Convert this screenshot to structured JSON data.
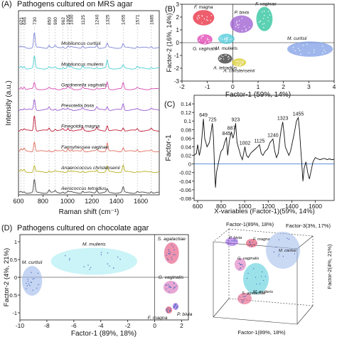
{
  "chart_data": [
    {
      "id": "A",
      "type": "line",
      "panel_label": "(A)",
      "title": "Pathogens cultured on MRS agar",
      "xlabel": "Raman shift (cm⁻¹)",
      "ylabel": "Intensity (a.u.)",
      "xlim": [
        600,
        1750
      ],
      "xticks": [
        600,
        800,
        1000,
        1200,
        1400,
        1600
      ],
      "peak_labels": [
        621,
        646,
        730,
        850,
        900,
        962,
        1005,
        1030,
        1125,
        1240,
        1325,
        1455,
        1571,
        1685
      ],
      "series": [
        {
          "name": "Mobiluncus curtisii",
          "color": "#7f86d8"
        },
        {
          "name": "Mobiluncus mulieris",
          "color": "#4fd0d6"
        },
        {
          "name": "Gardnerella vaginalis",
          "color": "#d64bb4"
        },
        {
          "name": "Prevotella bivia",
          "color": "#9b59d0"
        },
        {
          "name": "Finegoldia magna",
          "color": "#c0203a"
        },
        {
          "name": "Fannyhessea vaginae",
          "color": "#e07060"
        },
        {
          "name": "Anaerococcus christensenii",
          "color": "#b8b022"
        },
        {
          "name": "Aerococcus tetradius",
          "color": "#444444"
        }
      ]
    },
    {
      "id": "B",
      "type": "scatter",
      "panel_label": "(B)",
      "xlabel": "Factor-1 (59%, 14%)",
      "ylabel": "Factor-2 (16%, 14%)",
      "xlim": [
        -2,
        4
      ],
      "ylim": [
        -3,
        3
      ],
      "xticks": [
        -2,
        -1,
        0,
        1,
        2,
        3,
        4
      ],
      "yticks": [
        -3,
        -2,
        -1,
        0,
        1,
        2,
        3
      ],
      "groups": [
        {
          "name": "F. magna",
          "color": "#e8283c",
          "cx": -1.15,
          "cy": 1.95,
          "rx": 0.42,
          "ry": 0.6
        },
        {
          "name": "P. bivia",
          "color": "#9b59d0",
          "cx": 0.35,
          "cy": 1.45,
          "rx": 0.45,
          "ry": 0.68
        },
        {
          "name": "F. vaginae",
          "color": "#27c29a",
          "cx": 1.25,
          "cy": 1.85,
          "rx": 0.32,
          "ry": 0.95
        },
        {
          "name": "G. vaginalis",
          "color": "#e23fb2",
          "cx": -1.1,
          "cy": 0.25,
          "rx": 0.3,
          "ry": 0.4
        },
        {
          "name": "M. mulieris",
          "color": "#48c9d8",
          "cx": -0.25,
          "cy": 0.3,
          "rx": 0.32,
          "ry": 0.4
        },
        {
          "name": "M. curtisii",
          "color": "#7f9fe6",
          "cx": 3.05,
          "cy": -0.5,
          "rx": 0.9,
          "ry": 0.6
        },
        {
          "name": "A. tetradius",
          "color": "#333333",
          "cx": -0.3,
          "cy": -1.25,
          "rx": 0.28,
          "ry": 0.38
        },
        {
          "name": "A. christensenii",
          "color": "#d8cc2a",
          "cx": 0.25,
          "cy": -1.55,
          "rx": 0.28,
          "ry": 0.32
        }
      ]
    },
    {
      "id": "C",
      "type": "line",
      "panel_label": "(C)",
      "xlabel": "X-variables (Factor-1)(59%, 14%)",
      "ylabel": "Factor-1",
      "xlim": [
        570,
        1760
      ],
      "ylim": [
        -0.085,
        0.16
      ],
      "xticks": [
        600,
        800,
        1000,
        1200,
        1400,
        1600
      ],
      "yticks": [
        -0.08,
        -0.06,
        -0.04,
        -0.02,
        0,
        0.02,
        0.04,
        0.06,
        0.08,
        0.1,
        0.12,
        0.14
      ],
      "peak_labels": [
        {
          "x": 649,
          "label": "649"
        },
        {
          "x": 725,
          "label": "725"
        },
        {
          "x": 845,
          "label": "845"
        },
        {
          "x": 887,
          "label": "887"
        },
        {
          "x": 923,
          "label": "923"
        },
        {
          "x": 1002,
          "label": "1002"
        },
        {
          "x": 1125,
          "label": "1125"
        },
        {
          "x": 1240,
          "label": "1240"
        },
        {
          "x": 1323,
          "label": "1323"
        },
        {
          "x": 1455,
          "label": "1455"
        }
      ],
      "points": [
        [
          570,
          0.02
        ],
        [
          590,
          0.025
        ],
        [
          600,
          0.045
        ],
        [
          615,
          0.02
        ],
        [
          630,
          0.04
        ],
        [
          649,
          0.105
        ],
        [
          660,
          0.06
        ],
        [
          680,
          0.04
        ],
        [
          700,
          0.05
        ],
        [
          712,
          0.07
        ],
        [
          725,
          0.095
        ],
        [
          735,
          0.06
        ],
        [
          745,
          -0.02
        ],
        [
          752,
          -0.055
        ],
        [
          760,
          -0.02
        ],
        [
          775,
          0.0
        ],
        [
          790,
          0.02
        ],
        [
          800,
          0.03
        ],
        [
          815,
          0.035
        ],
        [
          830,
          0.05
        ],
        [
          845,
          0.062
        ],
        [
          855,
          0.02
        ],
        [
          870,
          0.055
        ],
        [
          887,
          0.075
        ],
        [
          900,
          0.06
        ],
        [
          910,
          0.07
        ],
        [
          923,
          0.095
        ],
        [
          935,
          0.05
        ],
        [
          950,
          0.035
        ],
        [
          965,
          0.02
        ],
        [
          980,
          0.01
        ],
        [
          1002,
          0.04
        ],
        [
          1015,
          0.02
        ],
        [
          1030,
          0.015
        ],
        [
          1050,
          0.025
        ],
        [
          1070,
          0.03
        ],
        [
          1090,
          0.035
        ],
        [
          1110,
          0.04
        ],
        [
          1125,
          0.045
        ],
        [
          1140,
          0.025
        ],
        [
          1155,
          0.02
        ],
        [
          1175,
          0.03
        ],
        [
          1195,
          0.035
        ],
        [
          1215,
          0.05
        ],
        [
          1240,
          0.058
        ],
        [
          1255,
          0.03
        ],
        [
          1270,
          0.015
        ],
        [
          1285,
          0.025
        ],
        [
          1300,
          0.06
        ],
        [
          1310,
          0.08
        ],
        [
          1323,
          0.098
        ],
        [
          1335,
          0.07
        ],
        [
          1345,
          0.04
        ],
        [
          1360,
          0.03
        ],
        [
          1375,
          0.02
        ],
        [
          1390,
          0.03
        ],
        [
          1405,
          0.05
        ],
        [
          1420,
          0.07
        ],
        [
          1440,
          0.1
        ],
        [
          1455,
          0.108
        ],
        [
          1465,
          0.08
        ],
        [
          1475,
          0.04
        ],
        [
          1485,
          0.0
        ],
        [
          1495,
          -0.04
        ],
        [
          1505,
          -0.01
        ],
        [
          1520,
          0.005
        ],
        [
          1535,
          -0.02
        ],
        [
          1550,
          -0.035
        ],
        [
          1565,
          -0.015
        ],
        [
          1580,
          0.005
        ],
        [
          1600,
          0.015
        ],
        [
          1620,
          0.012
        ],
        [
          1640,
          0.01
        ],
        [
          1660,
          0.012
        ],
        [
          1680,
          0.013
        ],
        [
          1700,
          0.01
        ],
        [
          1720,
          0.012
        ],
        [
          1740,
          0.01
        ],
        [
          1760,
          0.011
        ]
      ]
    },
    {
      "id": "D",
      "type": "scatter",
      "panel_label": "(D)",
      "title": "Pathogens cultured on chocolate agar",
      "xlabel": "Factor-1 (89%, 18%)",
      "ylabel": "Factor-2 (4%, 21%)",
      "xlim": [
        -10,
        2.5
      ],
      "ylim": [
        -1.2,
        1.2
      ],
      "xticks": [
        -10,
        -8,
        -6,
        -4,
        -2,
        0,
        2
      ],
      "yticks": [
        -1,
        -0.5,
        0,
        0.5,
        1
      ],
      "groups": [
        {
          "name": "M. curtisii",
          "color": "#9db8ea",
          "cx": -9.1,
          "cy": -0.1,
          "rx": 0.75,
          "ry": 0.42
        },
        {
          "name": "M. mulieris",
          "color": "#a6ecf2",
          "cx": -4.5,
          "cy": 0.45,
          "rx": 3.2,
          "ry": 0.38
        },
        {
          "name": "S. agalactiae",
          "color": "#e24a78",
          "cx": 1.25,
          "cy": 0.68,
          "rx": 0.55,
          "ry": 0.3
        },
        {
          "name": "G. vaginalis",
          "color": "#d86ab8",
          "cx": 1.2,
          "cy": -0.28,
          "rx": 0.55,
          "ry": 0.18
        },
        {
          "name": "F. magna",
          "color": "#e23050",
          "cx": 1.05,
          "cy": -0.92,
          "rx": 0.25,
          "ry": 0.1
        },
        {
          "name": "P. bivia",
          "color": "#9950e0",
          "cx": 1.55,
          "cy": -0.82,
          "rx": 0.22,
          "ry": 0.1
        }
      ]
    },
    {
      "id": "E",
      "type": "scatter",
      "title": "",
      "xlabel": "Factor-1(89%, 18%)",
      "ylabel": "Factor-2(4%, 21%)",
      "zlabel": "Factor-3(3%, 17%)",
      "groups": [
        {
          "name": "P. bivia",
          "color": "#9950e0"
        },
        {
          "name": "F. magna",
          "color": "#e23050"
        },
        {
          "name": "G. vaginalis",
          "color": "#d86ab8"
        },
        {
          "name": "M. mulieris",
          "color": "#48c9d8"
        },
        {
          "name": "S. agalactiae",
          "color": "#e24a78"
        },
        {
          "name": "M. curtisii",
          "color": "#9db8ea"
        }
      ]
    }
  ]
}
